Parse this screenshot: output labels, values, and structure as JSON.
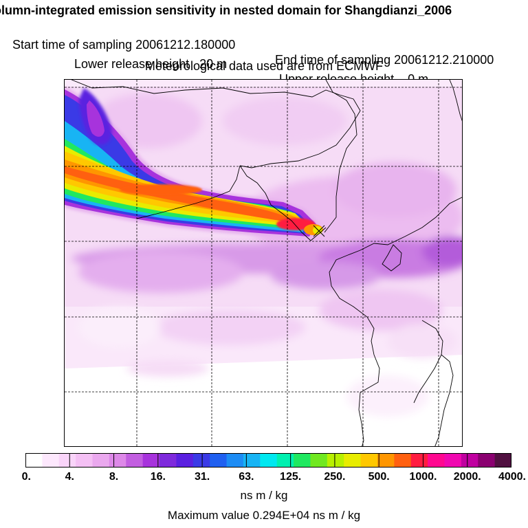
{
  "header": {
    "title": "olumn-integrated emission sensitivity in nested domain for Shangdianzi_2006",
    "start_label": "Start time of sampling 20061212.180000",
    "end_label": "End time of sampling 20061212.210000",
    "lower_label": "Lower release height   20 m",
    "upper_label": "Upper release height    0 m",
    "met_label": "Meteorological data used are from ECMWF"
  },
  "colorbar": {
    "colors": [
      "#ffffff",
      "#fde8fd",
      "#f9d4f9",
      "#f4c0f4",
      "#eaa8ee",
      "#dd88e8",
      "#c25ee0",
      "#a733dc",
      "#7e2adc",
      "#5a20e0",
      "#3a3ae6",
      "#2060f0",
      "#1d8cf4",
      "#18b4f4",
      "#00e8f0",
      "#00f0b0",
      "#20e860",
      "#70e820",
      "#b8f000",
      "#e8ec00",
      "#ffc800",
      "#ff9600",
      "#ff6010",
      "#ff1c40",
      "#ff0890",
      "#f008b0",
      "#c000a0",
      "#8a0070",
      "#501040"
    ],
    "tick_labels": [
      "0.",
      "4.",
      "8.",
      "16.",
      "31.",
      "63.",
      "125.",
      "250.",
      "500.",
      "1000.",
      "2000.",
      "4000."
    ],
    "unit": "ns m / kg"
  },
  "footer": {
    "max_value": "Maximum value  0.294E+04 ns m / kg"
  }
}
